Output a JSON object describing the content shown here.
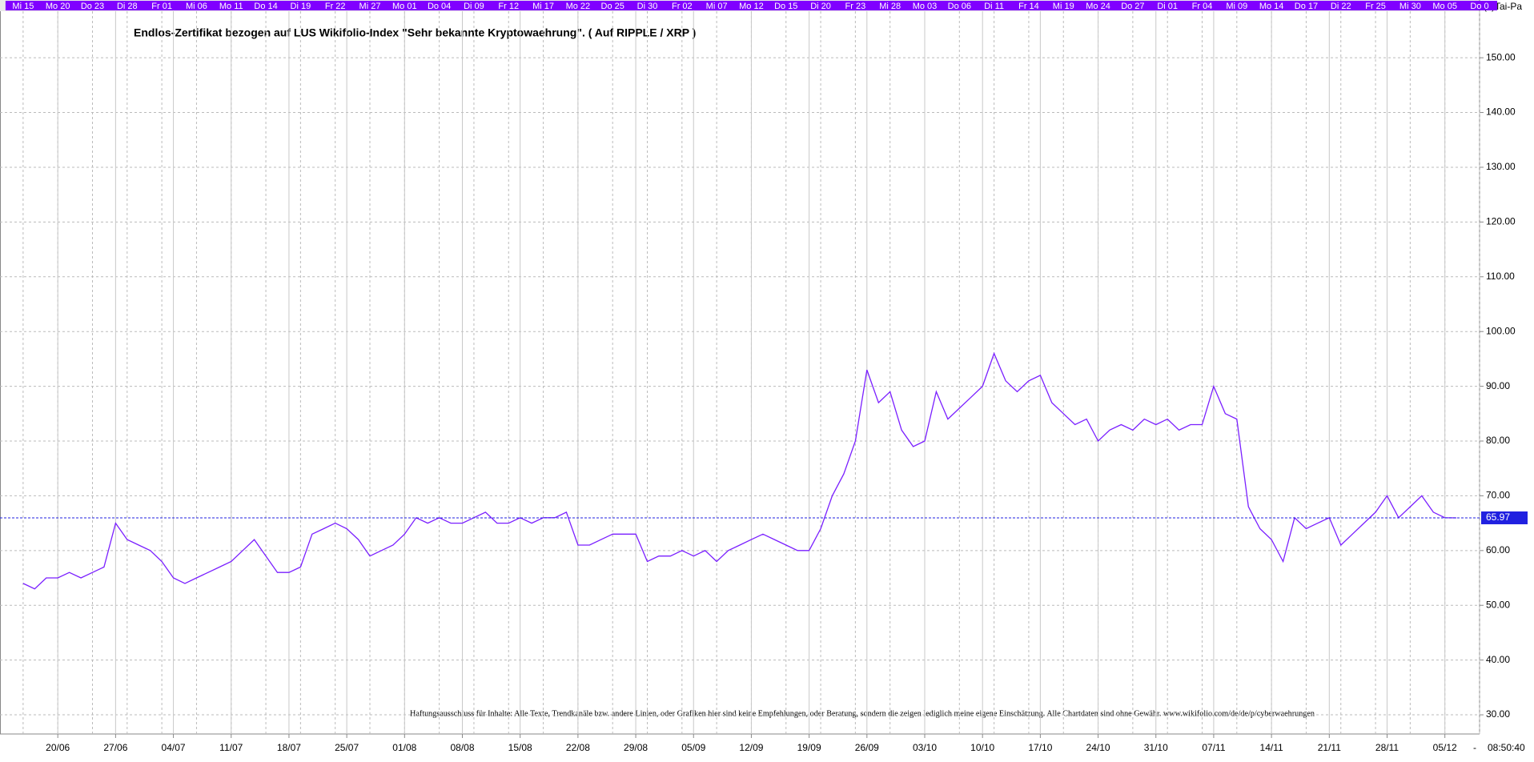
{
  "chart_data": {
    "type": "line",
    "title": "Endlos-Zertifikat bezogen auf LUS Wikifolio-Index \"Sehr bekannte Kryptowaehrung\". ( Auf RIPPLE / XRP )",
    "copyright": "(c)Tai-Pa",
    "disclaimer": "Haftungsausschluss für Inhalte: Alle Texte, Trendkanäle bzw. andere Linien, oder Grafiken hier sind keine Empfehlungen, oder Beratung, sondern die zeigen lediglich meine eigene Einschätzung. Alle Chartdaten sind ohne Gewähr.  www.wikifolio.com/de/de/p/cyberwaehrungen",
    "color": "#7a1fff",
    "values": [
      54,
      53,
      55,
      55,
      56,
      55,
      56,
      57,
      65,
      62,
      61,
      60,
      58,
      55,
      54,
      55,
      56,
      57,
      58,
      60,
      62,
      59,
      56,
      56,
      57,
      63,
      64,
      65,
      64,
      62,
      59,
      60,
      61,
      63,
      66,
      65,
      66,
      65,
      65,
      66,
      67,
      65,
      65,
      66,
      65,
      66,
      66,
      67,
      61,
      61,
      62,
      63,
      63,
      63,
      58,
      59,
      59,
      60,
      59,
      60,
      58,
      60,
      61,
      62,
      63,
      62,
      61,
      60,
      60,
      64,
      70,
      74,
      80,
      93,
      87,
      89,
      82,
      79,
      80,
      89,
      84,
      86,
      88,
      90,
      96,
      91,
      89,
      91,
      92,
      87,
      85,
      83,
      84,
      80,
      82,
      83,
      82,
      84,
      83,
      84,
      82,
      83,
      83,
      90,
      85,
      84,
      68,
      64,
      62,
      58,
      66,
      64,
      65,
      66,
      61,
      63,
      65,
      67,
      70,
      66,
      68,
      70,
      67,
      66,
      65.97
    ],
    "last_value": 65.97,
    "xlim": [
      -2,
      126
    ],
    "ylim": [
      26.5,
      158.5
    ],
    "yticks": [
      {
        "value": 30,
        "label": "30.00"
      },
      {
        "value": 40,
        "label": "40.00"
      },
      {
        "value": 50,
        "label": "50.00"
      },
      {
        "value": 60,
        "label": "60.00"
      },
      {
        "value": 70,
        "label": "70.00"
      },
      {
        "value": 80,
        "label": "80.00"
      },
      {
        "value": 90,
        "label": "90.00"
      },
      {
        "value": 100,
        "label": "100.00"
      },
      {
        "value": 110,
        "label": "110.00"
      },
      {
        "value": 120,
        "label": "120.00"
      },
      {
        "value": 130,
        "label": "130.00"
      },
      {
        "value": 140,
        "label": "140.00"
      },
      {
        "value": 150,
        "label": "150.00"
      }
    ],
    "xticks": [
      {
        "value": 3,
        "label": "20/06"
      },
      {
        "value": 8,
        "label": "27/06"
      },
      {
        "value": 13,
        "label": "04/07"
      },
      {
        "value": 18,
        "label": "11/07"
      },
      {
        "value": 23,
        "label": "18/07"
      },
      {
        "value": 28,
        "label": "25/07"
      },
      {
        "value": 33,
        "label": "01/08"
      },
      {
        "value": 38,
        "label": "08/08"
      },
      {
        "value": 43,
        "label": "15/08"
      },
      {
        "value": 48,
        "label": "22/08"
      },
      {
        "value": 53,
        "label": "29/08"
      },
      {
        "value": 58,
        "label": "05/09"
      },
      {
        "value": 63,
        "label": "12/09"
      },
      {
        "value": 68,
        "label": "19/09"
      },
      {
        "value": 73,
        "label": "26/09"
      },
      {
        "value": 78,
        "label": "03/10"
      },
      {
        "value": 83,
        "label": "10/10"
      },
      {
        "value": 88,
        "label": "17/10"
      },
      {
        "value": 93,
        "label": "24/10"
      },
      {
        "value": 98,
        "label": "31/10"
      },
      {
        "value": 103,
        "label": "07/11"
      },
      {
        "value": 108,
        "label": "14/11"
      },
      {
        "value": 113,
        "label": "21/11"
      },
      {
        "value": 118,
        "label": "28/11"
      },
      {
        "value": 123,
        "label": "05/12"
      }
    ],
    "xticks_top": [
      {
        "value": 0,
        "label": "Mi 15"
      },
      {
        "value": 3,
        "label": "Mo 20"
      },
      {
        "value": 6,
        "label": "Do 23"
      },
      {
        "value": 9,
        "label": "Di 28"
      },
      {
        "value": 12,
        "label": "Fr 01"
      },
      {
        "value": 15,
        "label": "Mi 06"
      },
      {
        "value": 18,
        "label": "Mo 11"
      },
      {
        "value": 21,
        "label": "Do 14"
      },
      {
        "value": 24,
        "label": "Di 19"
      },
      {
        "value": 27,
        "label": "Fr 22"
      },
      {
        "value": 30,
        "label": "Mi 27"
      },
      {
        "value": 33,
        "label": "Mo 01"
      },
      {
        "value": 36,
        "label": "Do 04"
      },
      {
        "value": 39,
        "label": "Di 09"
      },
      {
        "value": 42,
        "label": "Fr 12"
      },
      {
        "value": 45,
        "label": "Mi 17"
      },
      {
        "value": 48,
        "label": "Mo 22"
      },
      {
        "value": 51,
        "label": "Do 25"
      },
      {
        "value": 54,
        "label": "Di 30"
      },
      {
        "value": 57,
        "label": "Fr 02"
      },
      {
        "value": 60,
        "label": "Mi 07"
      },
      {
        "value": 63,
        "label": "Mo 12"
      },
      {
        "value": 66,
        "label": "Do 15"
      },
      {
        "value": 69,
        "label": "Di 20"
      },
      {
        "value": 72,
        "label": "Fr 23"
      },
      {
        "value": 75,
        "label": "Mi 28"
      },
      {
        "value": 78,
        "label": "Mo 03"
      },
      {
        "value": 81,
        "label": "Do 06"
      },
      {
        "value": 84,
        "label": "Di 11"
      },
      {
        "value": 87,
        "label": "Fr 14"
      },
      {
        "value": 90,
        "label": "Mi 19"
      },
      {
        "value": 93,
        "label": "Mo 24"
      },
      {
        "value": 96,
        "label": "Do 27"
      },
      {
        "value": 99,
        "label": "Di 01"
      },
      {
        "value": 102,
        "label": "Fr 04"
      },
      {
        "value": 105,
        "label": "Mi 09"
      },
      {
        "value": 108,
        "label": "Mo 14"
      },
      {
        "value": 111,
        "label": "Do 17"
      },
      {
        "value": 114,
        "label": "Di 22"
      },
      {
        "value": 117,
        "label": "Fr 25"
      },
      {
        "value": 120,
        "label": "Mi 30"
      },
      {
        "value": 123,
        "label": "Mo 05"
      },
      {
        "value": 126,
        "label": "Do 0"
      }
    ],
    "separator": "-",
    "time_label": "08:50:40",
    "grid": true
  }
}
